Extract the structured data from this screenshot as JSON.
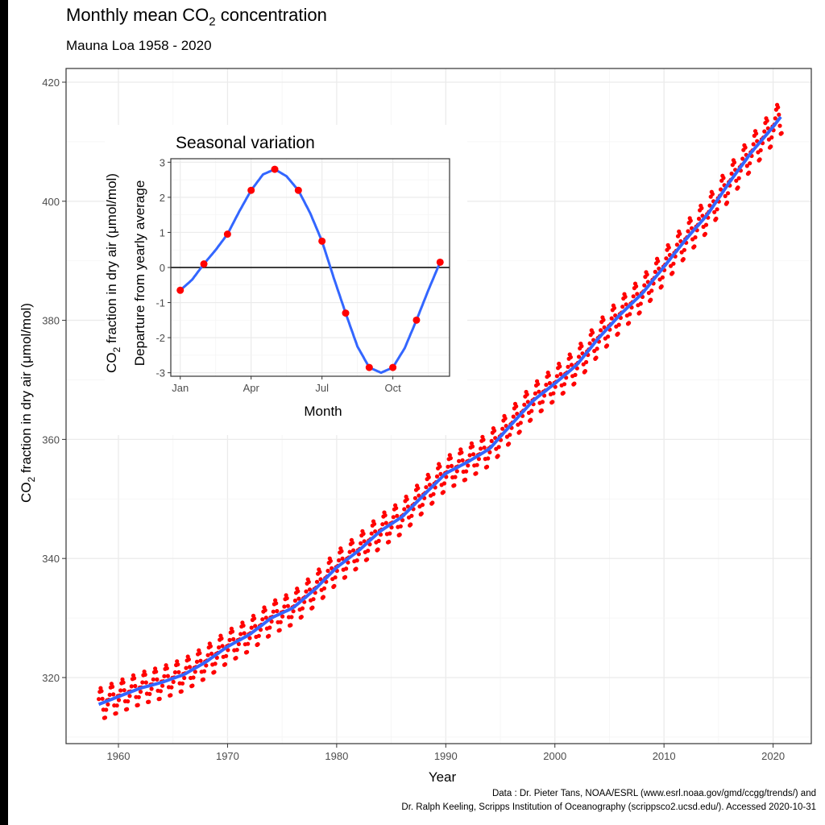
{
  "title_main": "Monthly mean CO",
  "title_sub": "2",
  "title_end": " concentration",
  "subtitle": "Mauna Loa 1958 - 2020",
  "credit": {
    "line1": "Data : Dr. Pieter Tans, NOAA/ESRL (www.esrl.noaa.gov/gmd/ccgg/trends/) and",
    "line2": "Dr. Ralph Keeling, Scripps Institution of Oceanography (scrippsco2.ucsd.edu/). Accessed  2020-10-31"
  },
  "colors": {
    "points": "#ff0000",
    "trend": "#3366ff",
    "grid": "#ebebeb",
    "panel_border": "#333333"
  },
  "chart_data": [
    {
      "type": "scatter",
      "name": "main",
      "xlabel": "Year",
      "ylabel_parts": [
        "CO",
        "2",
        " fraction in dry air (μmol/mol)"
      ],
      "xlim": [
        1955.2,
        2023.5
      ],
      "ylim": [
        308.9,
        422.3
      ],
      "xticks": [
        1960,
        1970,
        1980,
        1990,
        2000,
        2010,
        2020
      ],
      "xtick_labels": [
        "1960",
        "1970",
        "1980",
        "1990",
        "2000",
        "2010",
        "2020"
      ],
      "yticks": [
        320,
        340,
        360,
        380,
        400,
        420
      ],
      "ytick_labels": [
        "320",
        "340",
        "360",
        "380",
        "400",
        "420"
      ],
      "series": [
        {
          "name": "Monthly mean (red points, one per month 1958.2–2020.75)",
          "model": "trend(year) + seasonal[month]",
          "x_start": 1958.2,
          "x_end": 2020.75
        },
        {
          "name": "Smoothed trend (blue line)",
          "x": [
            1958.2,
            1960,
            1962,
            1964,
            1966,
            1968,
            1970,
            1972,
            1974,
            1976,
            1978,
            1980,
            1982,
            1984,
            1986,
            1988,
            1990,
            1992,
            1994,
            1996,
            1998,
            2000,
            2002,
            2004,
            2006,
            2008,
            2010,
            2012,
            2014,
            2016,
            2018,
            2020,
            2020.75
          ],
          "values": [
            315.5,
            316.8,
            318.2,
            319.2,
            320.5,
            322.6,
            325.2,
            327.2,
            330.0,
            331.7,
            334.8,
            338.5,
            341.3,
            344.6,
            347.0,
            350.7,
            354.3,
            356.2,
            358.4,
            362.5,
            366.5,
            369.4,
            372.5,
            377.0,
            381.0,
            384.5,
            389.0,
            393.6,
            397.8,
            403.2,
            408.2,
            412.5,
            414.3
          ]
        }
      ]
    },
    {
      "type": "line",
      "name": "inset",
      "title": "Seasonal variation",
      "xlabel": "Month",
      "ylabel_line1_parts": [
        "CO",
        "2",
        " fraction in dry air (μmol/mol)"
      ],
      "ylabel_line2": "Departure from yearly average",
      "xlim": [
        0.6,
        12.4
      ],
      "ylim": [
        -3.1,
        3.1
      ],
      "xticks": [
        1,
        4,
        7,
        10
      ],
      "xtick_labels": [
        "Jan",
        "Apr",
        "Jul",
        "Oct"
      ],
      "yticks": [
        -3,
        -2,
        -1,
        0,
        1,
        2,
        3
      ],
      "ytick_labels": [
        "-3",
        "-2",
        "-1",
        "0",
        "1",
        "2",
        "3"
      ],
      "months": [
        1,
        2,
        3,
        4,
        5,
        6,
        7,
        8,
        9,
        10,
        11,
        12
      ],
      "values": [
        -0.65,
        0.1,
        0.95,
        2.2,
        2.8,
        2.2,
        0.75,
        -1.3,
        -2.85,
        -2.85,
        -1.5,
        0.15
      ],
      "smooth_x": [
        1,
        1.5,
        2,
        2.5,
        3,
        3.5,
        4,
        4.5,
        5,
        5.5,
        6,
        6.5,
        7,
        7.5,
        8,
        8.5,
        9,
        9.5,
        10,
        10.5,
        11,
        11.5,
        12
      ],
      "smooth_values": [
        -0.65,
        -0.35,
        0.1,
        0.5,
        0.95,
        1.6,
        2.2,
        2.65,
        2.8,
        2.6,
        2.2,
        1.55,
        0.75,
        -0.3,
        -1.3,
        -2.25,
        -2.85,
        -3.0,
        -2.85,
        -2.3,
        -1.5,
        -0.65,
        0.15
      ]
    }
  ]
}
